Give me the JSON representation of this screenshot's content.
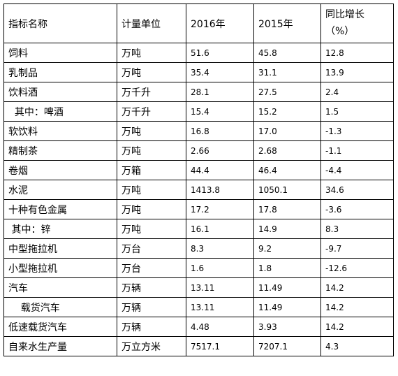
{
  "headers": {
    "name": "指标名称",
    "unit": "计量单位",
    "y2016": "2016年",
    "y2015": "2015年",
    "growth_line1": "同比增长",
    "growth_line2": "（%）"
  },
  "rows": [
    {
      "name": "饲料",
      "unit": "万吨",
      "v2016": "51.6",
      "v2015": "45.8",
      "growth": "12.8"
    },
    {
      "name": "乳制品",
      "unit": "万吨",
      "v2016": "35.4",
      "v2015": "31.1",
      "growth": "13.9"
    },
    {
      "name": "饮料酒",
      "unit": "万千升",
      "v2016": "28.1",
      "v2015": "27.5",
      "growth": "2.4"
    },
    {
      "name": "  其中：啤酒",
      "unit": "万千升",
      "v2016": "15.4",
      "v2015": "15.2",
      "growth": "1.5"
    },
    {
      "name": "软饮料",
      "unit": "万吨",
      "v2016": "16.8",
      "v2015": "17.0",
      "growth": "-1.3"
    },
    {
      "name": "精制茶",
      "unit": "万吨",
      "v2016": "2.66",
      "v2015": "2.68",
      "growth": "-1.1"
    },
    {
      "name": "卷烟",
      "unit": "万箱",
      "v2016": "44.4",
      "v2015": "46.4",
      "growth": "-4.4"
    },
    {
      "name": "水泥",
      "unit": "万吨",
      "v2016": "1413.8",
      "v2015": "1050.1",
      "growth": "34.6"
    },
    {
      "name": "十种有色金属",
      "unit": "万吨",
      "v2016": "17.2",
      "v2015": "17.8",
      "growth": "-3.6"
    },
    {
      "name": " 其中：锌",
      "unit": "万吨",
      "v2016": "16.1",
      "v2015": "14.9",
      "growth": "8.3"
    },
    {
      "name": "中型拖拉机",
      "unit": "万台",
      "v2016": "8.3",
      "v2015": "9.2",
      "growth": "-9.7"
    },
    {
      "name": "小型拖拉机",
      "unit": "万台",
      "v2016": "1.6",
      "v2015": "1.8",
      "growth": "-12.6"
    },
    {
      "name": "汽车",
      "unit": "万辆",
      "v2016": "13.11",
      "v2015": "11.49",
      "growth": "14.2"
    },
    {
      "name": "    载货汽车",
      "unit": "万辆",
      "v2016": "13.11",
      "v2015": "11.49",
      "growth": "14.2"
    },
    {
      "name": "低速载货汽车",
      "unit": "万辆",
      "v2016": "4.48",
      "v2015": "3.93",
      "growth": "14.2"
    },
    {
      "name": "自来水生产量",
      "unit": "万立方米",
      "v2016": "7517.1",
      "v2015": "7207.1",
      "growth": "4.3"
    }
  ]
}
